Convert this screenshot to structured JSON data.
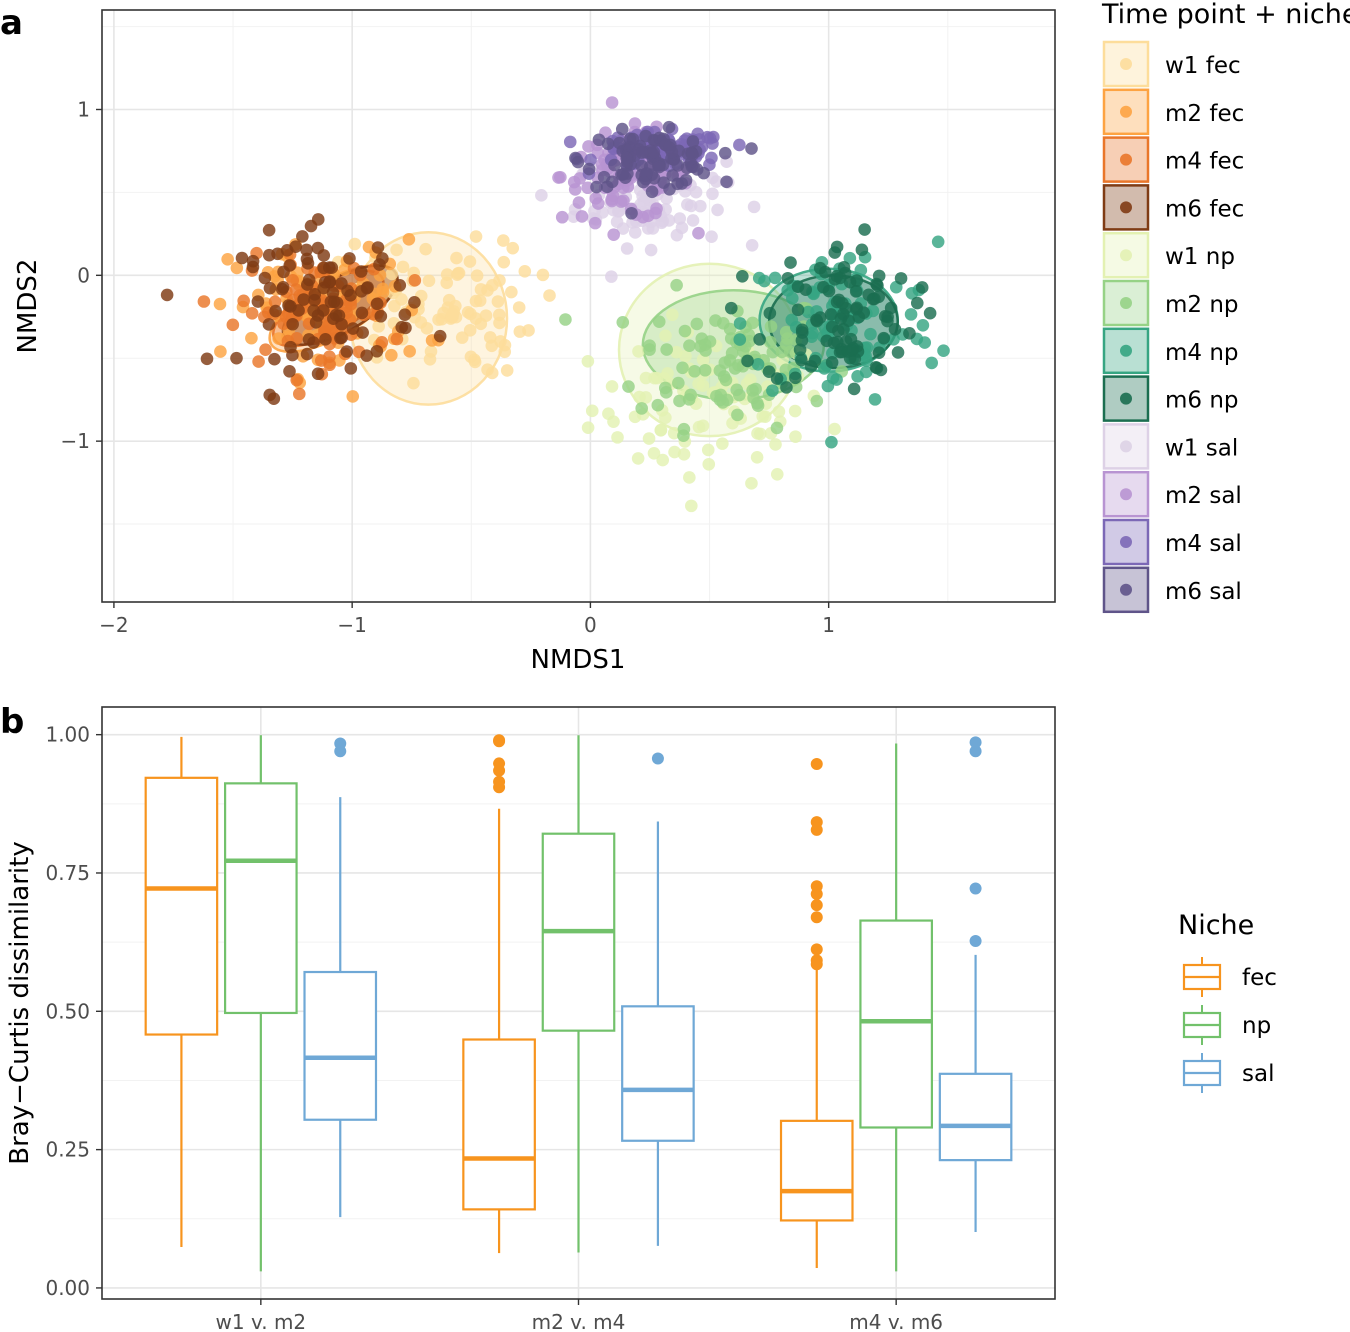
{
  "figure": {
    "panel_a_label": "a",
    "panel_b_label": "b"
  },
  "chart_data": [
    {
      "type": "scatter",
      "panel": "a",
      "xlabel": "NMDS1",
      "ylabel": "NMDS2",
      "xlim": [
        -2.05,
        1.95
      ],
      "ylim": [
        -1.97,
        1.6
      ],
      "xticks": [
        {
          "value": -2,
          "label": "−2"
        },
        {
          "value": -1,
          "label": "−1"
        },
        {
          "value": 0,
          "label": "0"
        },
        {
          "value": 1,
          "label": "1"
        }
      ],
      "yticks": [
        {
          "value": -1,
          "label": "−1"
        },
        {
          "value": 0,
          "label": "0"
        },
        {
          "value": 1,
          "label": "1"
        }
      ],
      "grid": true,
      "legend_title": "Time point + niche",
      "legend_position": "right",
      "series": [
        {
          "name": "w1 fec",
          "color": "#FDDD9B",
          "center": [
            -0.65,
            -0.2
          ],
          "spread": [
            0.45,
            0.45
          ],
          "ellipse": {
            "cx": -0.68,
            "cy": -0.26,
            "rx": 0.33,
            "ry": 0.52,
            "angle": 0
          }
        },
        {
          "name": "m2 fec",
          "color": "#FDA342",
          "center": [
            -1.1,
            -0.2
          ],
          "spread": [
            0.45,
            0.45
          ],
          "ellipse": {
            "cx": -1.08,
            "cy": -0.2,
            "rx": 0.3,
            "ry": 0.17,
            "angle": -30
          }
        },
        {
          "name": "m4 fec",
          "color": "#E9762A",
          "center": [
            -1.15,
            -0.22
          ],
          "spread": [
            0.35,
            0.35
          ],
          "ellipse": {
            "cx": -1.1,
            "cy": -0.2,
            "rx": 0.26,
            "ry": 0.15,
            "angle": -30
          }
        },
        {
          "name": "m6 fec",
          "color": "#7F3B14",
          "center": [
            -1.1,
            -0.15
          ],
          "spread": [
            0.4,
            0.45
          ],
          "ellipse": {
            "cx": -1.05,
            "cy": -0.18,
            "rx": 0.27,
            "ry": 0.16,
            "angle": -30
          }
        },
        {
          "name": "w1 np",
          "color": "#E3F1B2",
          "center": [
            0.5,
            -0.8
          ],
          "spread": [
            0.55,
            0.5
          ],
          "ellipse": {
            "cx": 0.5,
            "cy": -0.45,
            "rx": 0.38,
            "ry": 0.52,
            "angle": 0
          }
        },
        {
          "name": "m2 np",
          "color": "#96D286",
          "center": [
            0.6,
            -0.5
          ],
          "spread": [
            0.45,
            0.45
          ],
          "ellipse": {
            "cx": 0.6,
            "cy": -0.42,
            "rx": 0.38,
            "ry": 0.33,
            "angle": 0
          }
        },
        {
          "name": "m4 np",
          "color": "#36A582",
          "center": [
            1.05,
            -0.3
          ],
          "spread": [
            0.45,
            0.55
          ],
          "ellipse": {
            "cx": 1.0,
            "cy": -0.27,
            "rx": 0.29,
            "ry": 0.31,
            "angle": 0
          }
        },
        {
          "name": "m6 np",
          "color": "#1B6E50",
          "center": [
            1.05,
            -0.25
          ],
          "spread": [
            0.35,
            0.5
          ],
          "ellipse": {
            "cx": 1.02,
            "cy": -0.28,
            "rx": 0.27,
            "ry": 0.28,
            "angle": 0
          }
        },
        {
          "name": "w1 sal",
          "color": "#DDD1E6",
          "center": [
            0.25,
            0.45
          ],
          "spread": [
            0.35,
            0.3
          ],
          "ellipse": null
        },
        {
          "name": "m2 sal",
          "color": "#B894D2",
          "center": [
            0.15,
            0.6
          ],
          "spread": [
            0.3,
            0.3
          ],
          "ellipse": null
        },
        {
          "name": "m4 sal",
          "color": "#7C68B6",
          "center": [
            0.3,
            0.75
          ],
          "spread": [
            0.3,
            0.12
          ],
          "ellipse": null
        },
        {
          "name": "m6 sal",
          "color": "#5F5489",
          "center": [
            0.25,
            0.7
          ],
          "spread": [
            0.3,
            0.18
          ],
          "ellipse": null
        }
      ]
    },
    {
      "type": "box",
      "panel": "b",
      "title": "",
      "xlabel": "",
      "ylabel": "Bray−Curtis dissimilarity",
      "ylim": [
        -0.02,
        1.05
      ],
      "yticks": [
        {
          "value": 0.0,
          "label": "0.00"
        },
        {
          "value": 0.25,
          "label": "0.25"
        },
        {
          "value": 0.5,
          "label": "0.50"
        },
        {
          "value": 0.75,
          "label": "0.75"
        },
        {
          "value": 1.0,
          "label": "1.00"
        }
      ],
      "categories": [
        "w1 v. m2",
        "m2 v. m4",
        "m4 v. m6"
      ],
      "legend_title": "Niche",
      "legend_position": "right",
      "series": [
        {
          "name": "fec",
          "color": "#F7941E",
          "boxes": [
            {
              "min": 0.074,
              "q1": 0.458,
              "median": 0.722,
              "q3": 0.922,
              "max": 0.996,
              "outliers": []
            },
            {
              "min": 0.063,
              "q1": 0.142,
              "median": 0.234,
              "q3": 0.449,
              "max": 0.866,
              "outliers": [
                0.905,
                0.915,
                0.935,
                0.948,
                0.988,
                0.99
              ]
            },
            {
              "min": 0.036,
              "q1": 0.122,
              "median": 0.175,
              "q3": 0.302,
              "max": 0.575,
              "outliers": [
                0.585,
                0.592,
                0.612,
                0.67,
                0.692,
                0.712,
                0.726,
                0.828,
                0.842,
                0.947
              ]
            }
          ]
        },
        {
          "name": "np",
          "color": "#72C16B",
          "boxes": [
            {
              "min": 0.03,
              "q1": 0.497,
              "median": 0.772,
              "q3": 0.912,
              "max": 0.999,
              "outliers": []
            },
            {
              "min": 0.064,
              "q1": 0.465,
              "median": 0.645,
              "q3": 0.821,
              "max": 0.999,
              "outliers": []
            },
            {
              "min": 0.03,
              "q1": 0.29,
              "median": 0.482,
              "q3": 0.664,
              "max": 0.984,
              "outliers": []
            }
          ]
        },
        {
          "name": "sal",
          "color": "#6FA8D6",
          "boxes": [
            {
              "min": 0.128,
              "q1": 0.304,
              "median": 0.416,
              "q3": 0.571,
              "max": 0.887,
              "outliers": [
                0.97,
                0.984
              ]
            },
            {
              "min": 0.076,
              "q1": 0.266,
              "median": 0.358,
              "q3": 0.509,
              "max": 0.843,
              "outliers": [
                0.957
              ]
            },
            {
              "min": 0.101,
              "q1": 0.231,
              "median": 0.293,
              "q3": 0.387,
              "max": 0.602,
              "outliers": [
                0.627,
                0.722,
                0.97,
                0.986
              ]
            }
          ]
        }
      ]
    }
  ]
}
